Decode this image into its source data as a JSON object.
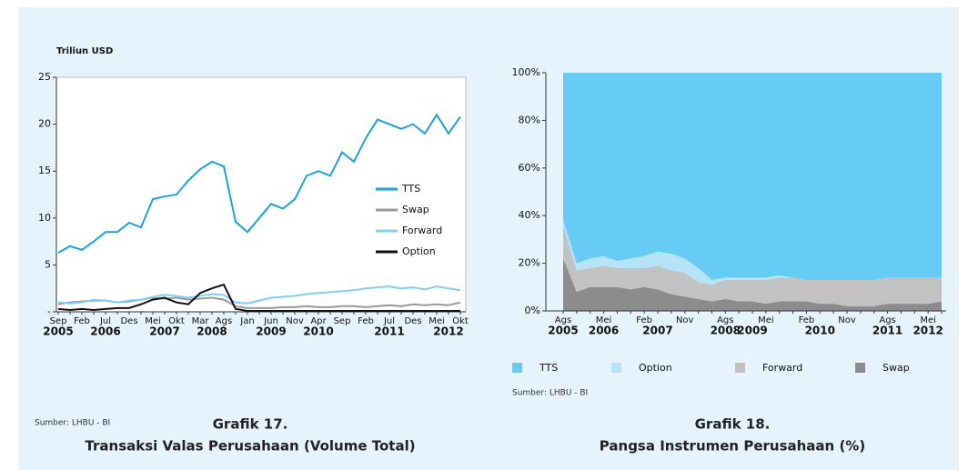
{
  "chart_data": [
    {
      "type": "line",
      "axis_label": "Triliun USD",
      "categories": [
        "Sep",
        null,
        "Feb",
        null,
        "Jul",
        null,
        "Des",
        null,
        "Mei",
        null,
        "Okt",
        null,
        "Mar",
        null,
        "Ags",
        null,
        "Jan",
        null,
        "Jun",
        null,
        "Nov",
        null,
        "Apr",
        null,
        "Sep",
        null,
        "Feb",
        null,
        "Jul",
        null,
        "Des",
        null,
        "Mei",
        null,
        "Okt"
      ],
      "years": [
        "2005",
        null,
        null,
        null,
        "2006",
        null,
        null,
        null,
        null,
        "2007",
        null,
        null,
        null,
        "2008",
        null,
        null,
        null,
        null,
        "2009",
        null,
        null,
        null,
        "2010",
        null,
        null,
        null,
        null,
        null,
        "2011",
        null,
        null,
        null,
        null,
        "2012",
        null
      ],
      "series": [
        {
          "name": "TTS",
          "color": "#1aa3e0",
          "values": [
            6.3,
            7,
            6.6,
            7.5,
            8.5,
            8.5,
            9.5,
            9,
            12,
            12.3,
            12.5,
            14,
            15.2,
            16,
            15.5,
            9.6,
            8.5,
            10,
            11.5,
            11,
            12,
            14.5,
            15,
            14.5,
            17,
            16,
            18.5,
            20.5,
            20,
            19.5,
            20,
            19,
            21,
            19,
            20.8
          ]
        },
        {
          "name": "Swap",
          "color": "#9a9a9a",
          "values": [
            0.8,
            1,
            1.1,
            1.2,
            1.2,
            1,
            1.1,
            1.3,
            1.5,
            1.4,
            1.5,
            1.3,
            1.4,
            1.5,
            1.3,
            0.6,
            0.4,
            0.4,
            0.4,
            0.5,
            0.5,
            0.6,
            0.5,
            0.5,
            0.6,
            0.6,
            0.5,
            0.6,
            0.7,
            0.6,
            0.8,
            0.7,
            0.8,
            0.7,
            1
          ]
        },
        {
          "name": "Forward",
          "color": "#7fd0f5",
          "values": [
            1,
            0.9,
            1,
            1.3,
            1.2,
            1,
            1.2,
            1.3,
            1.6,
            1.8,
            1.7,
            1.5,
            1.7,
            1.9,
            1.8,
            1,
            0.9,
            1.2,
            1.5,
            1.6,
            1.7,
            1.9,
            2,
            2.1,
            2.2,
            2.3,
            2.5,
            2.6,
            2.7,
            2.5,
            2.6,
            2.4,
            2.7,
            2.5,
            2.3
          ]
        },
        {
          "name": "Option",
          "color": "#111111",
          "values": [
            0.3,
            0.2,
            0.3,
            0.2,
            0.3,
            0.4,
            0.4,
            0.8,
            1.3,
            1.5,
            1,
            0.8,
            2,
            2.5,
            2.9,
            0.3,
            0.1,
            0.1,
            0.1,
            0.1,
            0.1,
            0.1,
            0.1,
            0.1,
            0.1,
            0.1,
            0.1,
            0.1,
            0.1,
            0.1,
            0.1,
            0.1,
            0.1,
            0.1,
            0.1
          ]
        }
      ],
      "ylim": [
        0,
        25
      ],
      "yticks": [
        {
          "value": 0,
          "label": "-"
        },
        5,
        10,
        15,
        20,
        25
      ],
      "legend": "inside-right",
      "source": "Sumber: LHBU - BI",
      "caption_number": "Grafik 17.",
      "caption_title": "Transaksi Valas Perusahaan (Volume Total)"
    },
    {
      "type": "stacked-area",
      "categories": [
        "Ags",
        null,
        null,
        "Mei",
        null,
        null,
        "Feb",
        null,
        null,
        "Nov",
        null,
        null,
        "Ags",
        null,
        null,
        "Mei",
        null,
        null,
        "Feb",
        null,
        null,
        "Nov",
        null,
        null,
        "Ags",
        null,
        null,
        "Mei",
        null
      ],
      "years": [
        "2005",
        null,
        null,
        "2006",
        null,
        null,
        null,
        "2007",
        null,
        null,
        null,
        null,
        "2008",
        null,
        "2009",
        null,
        null,
        null,
        null,
        "2010",
        null,
        null,
        null,
        null,
        "2011",
        null,
        null,
        "2012",
        null
      ],
      "series": [
        {
          "name": "Swap",
          "color": "#8c8c8c",
          "values": [
            22,
            8,
            10,
            10,
            10,
            9,
            10,
            9,
            7,
            6,
            5,
            4,
            5,
            4,
            4,
            3,
            4,
            4,
            4,
            3,
            3,
            2,
            2,
            2,
            3,
            3,
            3,
            3,
            4
          ]
        },
        {
          "name": "Forward",
          "color": "#c2c2c2",
          "values": [
            14,
            9,
            8,
            9,
            8,
            9,
            8,
            10,
            10,
            10,
            7,
            7,
            8,
            9,
            9,
            10,
            10,
            10,
            9,
            10,
            10,
            11,
            11,
            11,
            11,
            11,
            11,
            11,
            10
          ]
        },
        {
          "name": "Option",
          "color": "#b5e3f7",
          "values": [
            2,
            3,
            4,
            4,
            3,
            4,
            5,
            6,
            7,
            6,
            6,
            2,
            1,
            1,
            1,
            1,
            1,
            0,
            0,
            0,
            0,
            0,
            0,
            0,
            0,
            0,
            0,
            0,
            0
          ]
        },
        {
          "name": "TTS",
          "color": "#66ccf5",
          "values": [
            62,
            80,
            78,
            77,
            79,
            78,
            77,
            75,
            76,
            78,
            82,
            87,
            86,
            86,
            86,
            86,
            85,
            86,
            87,
            87,
            87,
            87,
            87,
            87,
            86,
            86,
            86,
            86,
            86
          ]
        }
      ],
      "ylim": [
        0,
        100
      ],
      "yticks": [
        {
          "value": 0,
          "label": "0%"
        },
        {
          "value": 20,
          "label": "20%"
        },
        {
          "value": 40,
          "label": "40%"
        },
        {
          "value": 60,
          "label": "60%"
        },
        {
          "value": 80,
          "label": "80%"
        },
        {
          "value": 100,
          "label": "100%"
        }
      ],
      "legend": "bottom",
      "source": "Sumber: LHBU - BI",
      "caption_number": "Grafik 18.",
      "caption_title": "Pangsa Instrumen Perusahaan (%)"
    }
  ]
}
